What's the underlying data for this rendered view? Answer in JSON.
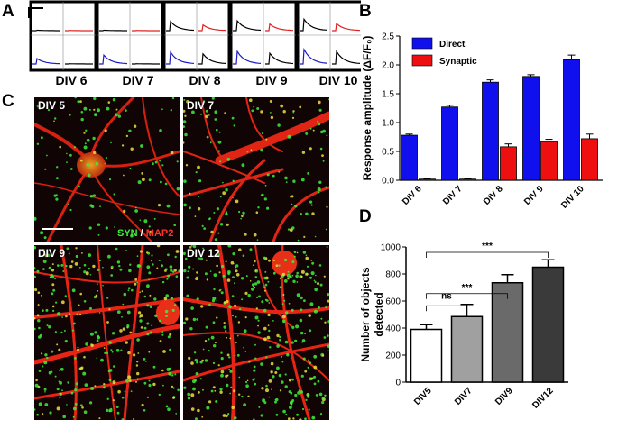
{
  "panel_a": {
    "label": "A",
    "div_labels": [
      "DIV 6",
      "DIV 7",
      "DIV 8",
      "DIV 9",
      "DIV 10"
    ],
    "trace_colors": {
      "direct": "#1a1ac8",
      "synaptic": "#e02020",
      "baseline": "#000000"
    }
  },
  "panel_b": {
    "label": "B"
  },
  "panel_c": {
    "label": "C",
    "tiles": [
      {
        "label": "DIV 5"
      },
      {
        "label": "DIV 7"
      },
      {
        "label": "DIV 9"
      },
      {
        "label": "DIV 12"
      }
    ],
    "stain_syn": "SYN",
    "stain_sep": " / ",
    "stain_map2": "MAP2",
    "colors": {
      "syn": "#3cf03c",
      "map2": "#ff2a2a"
    }
  },
  "panel_d": {
    "label": "D"
  },
  "chart_data": [
    {
      "type": "bar",
      "panel": "B",
      "categories": [
        "DIV 6",
        "DIV 7",
        "DIV 8",
        "DIV 9",
        "DIV 10"
      ],
      "series": [
        {
          "name": "Direct",
          "values": [
            0.78,
            1.27,
            1.7,
            1.8,
            2.09
          ],
          "errors": [
            0.02,
            0.03,
            0.04,
            0.03,
            0.08
          ],
          "color": "#1010ee"
        },
        {
          "name": "Synaptic",
          "values": [
            0.02,
            0.02,
            0.58,
            0.67,
            0.72
          ],
          "errors": [
            0.01,
            0.01,
            0.05,
            0.04,
            0.08
          ],
          "color": "#ee1010"
        }
      ],
      "ylabel": "Response amplitude (ΔF/F₀)",
      "ylim": [
        0,
        2.5
      ],
      "yticks": [
        "0.0",
        "0.5",
        "1.0",
        "1.5",
        "2.0",
        "2.5"
      ],
      "legend": "top-left"
    },
    {
      "type": "bar",
      "panel": "D",
      "categories": [
        "DIV5",
        "DIV7",
        "DIV9",
        "DIV12"
      ],
      "values": [
        390,
        485,
        735,
        850
      ],
      "errors": [
        35,
        90,
        60,
        55
      ],
      "bar_colors": [
        "#ffffff",
        "#a0a0a0",
        "#6a6a6a",
        "#3a3a3a"
      ],
      "ylabel": "Number of objects detected",
      "ylim": [
        0,
        1000
      ],
      "yticks": [
        "0",
        "200",
        "400",
        "600",
        "800",
        "1000"
      ],
      "significance": [
        {
          "from": "DIV5",
          "to": "DIV7",
          "label": "ns"
        },
        {
          "from": "DIV5",
          "to": "DIV9",
          "label": "***"
        },
        {
          "from": "DIV5",
          "to": "DIV12",
          "label": "***"
        }
      ]
    }
  ]
}
